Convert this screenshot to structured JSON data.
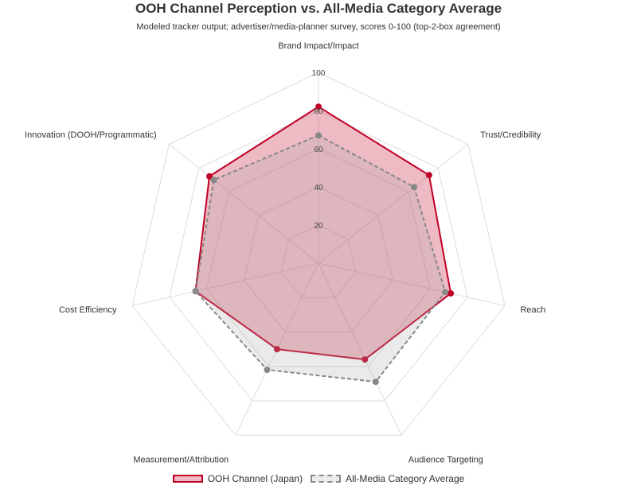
{
  "header": {
    "title": "OOH Channel Perception vs. All-Media Category Average",
    "subtitle": "Modeled tracker output; advertiser/media-planner survey, scores 0-100 (top-2-box agreement)"
  },
  "legend": {
    "ooh_label": "OOH Channel (Japan)",
    "avg_label": "All-Media Category Average"
  },
  "chart_data": {
    "type": "radar",
    "title": "OOH Channel Perception vs. All-Media Category Average",
    "subtitle": "Modeled tracker output; advertiser/media-planner survey, scores 0-100 (top-2-box agreement)",
    "categories": [
      "Brand Impact/Impact",
      "Trust/Credibility",
      "Reach",
      "Audience Targeting",
      "Measurement/Attribution",
      "Cost Efficiency",
      "Innovation (DOOH/Programmatic)"
    ],
    "series": [
      {
        "name": "OOH Channel (Japan)",
        "values": [
          82,
          74,
          71,
          56,
          50,
          66,
          73
        ],
        "color": "#c10026",
        "fill": "rgba(193,0,38,0.27)",
        "dash": "solid"
      },
      {
        "name": "All-Media Category Average",
        "values": [
          67,
          64,
          68,
          69,
          62,
          66,
          70
        ],
        "color": "#888888",
        "fill": "rgba(170,170,170,0.25)",
        "dash": "dashed"
      }
    ],
    "radial_range": [
      0,
      100
    ],
    "radial_ticks": [
      "20",
      "40",
      "60",
      "80",
      "100"
    ],
    "grid": true,
    "legend_position": "bottom"
  }
}
